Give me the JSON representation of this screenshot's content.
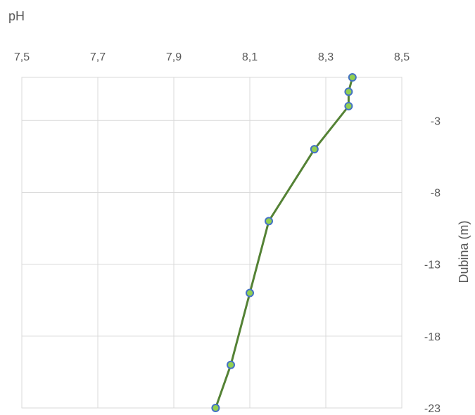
{
  "chart_data": {
    "type": "line",
    "xlabel": "pH",
    "ylabel": "Dubina (m)",
    "xlim": [
      7.5,
      8.5
    ],
    "ylim": [
      -23,
      0
    ],
    "x_ticks": [
      "7,5",
      "7,7",
      "7,9",
      "8,1",
      "8,3",
      "8,5"
    ],
    "x_tick_values": [
      7.5,
      7.7,
      7.9,
      8.1,
      8.3,
      8.5
    ],
    "y_ticks": [
      "-3",
      "-8",
      "-13",
      "-18",
      "-23"
    ],
    "y_tick_values": [
      -3,
      -8,
      -13,
      -18,
      -23
    ],
    "x_axis_position": "top",
    "y_axis_position": "right",
    "grid": true,
    "series": [
      {
        "points": [
          {
            "x": 8.37,
            "y": 0
          },
          {
            "x": 8.36,
            "y": -1
          },
          {
            "x": 8.36,
            "y": -2
          },
          {
            "x": 8.27,
            "y": -5
          },
          {
            "x": 8.15,
            "y": -10
          },
          {
            "x": 8.1,
            "y": -15
          },
          {
            "x": 8.05,
            "y": -20
          },
          {
            "x": 8.01,
            "y": -23
          }
        ],
        "line_color": "#548235",
        "marker_fill": "#92d050",
        "marker_stroke": "#4472c4"
      }
    ]
  }
}
